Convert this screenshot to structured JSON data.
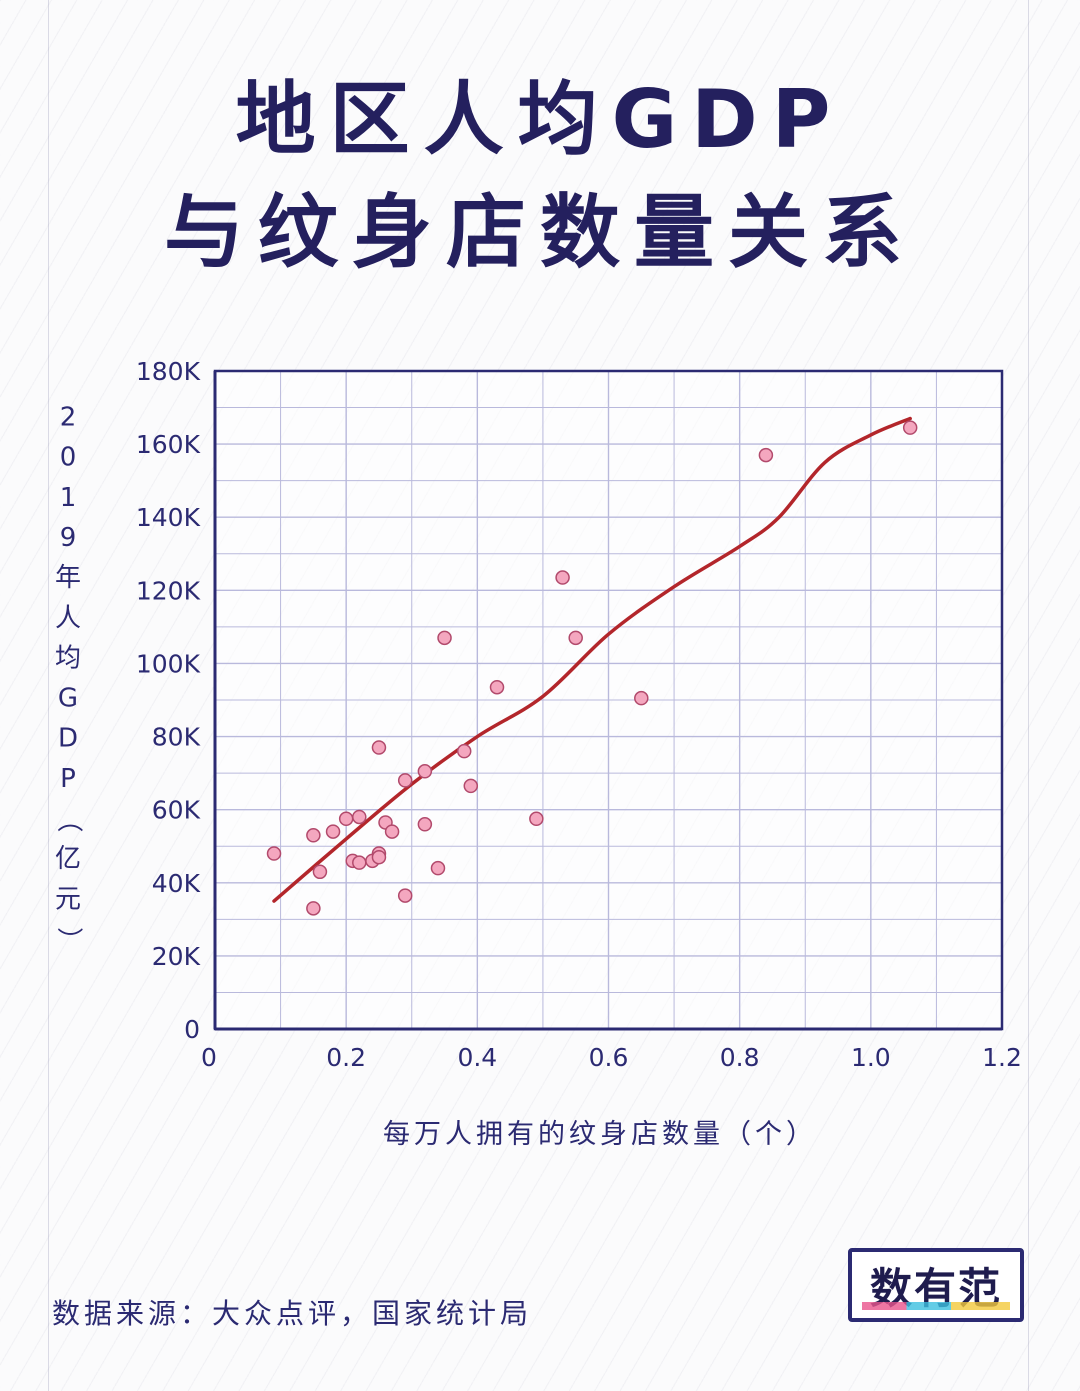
{
  "title": {
    "line1": "地区人均GDP",
    "line2": "与纹身店数量关系"
  },
  "chart_data": {
    "type": "scatter",
    "xlabel": "每万人拥有的纹身店数量（个）",
    "ylabel": "2019年人均GDP（亿元）",
    "xlim": [
      0,
      1.2
    ],
    "ylim": [
      0,
      180000
    ],
    "x_ticks": [
      "0",
      "0.2",
      "0.4",
      "0.6",
      "0.8",
      "1.0",
      "1.2"
    ],
    "y_ticks": [
      "0",
      "20K",
      "40K",
      "60K",
      "80K",
      "100K",
      "120K",
      "140K",
      "160K",
      "180K"
    ],
    "grid": true,
    "points": [
      {
        "x": 0.09,
        "y": 48000
      },
      {
        "x": 0.15,
        "y": 53000
      },
      {
        "x": 0.15,
        "y": 33000
      },
      {
        "x": 0.16,
        "y": 43000
      },
      {
        "x": 0.18,
        "y": 54000
      },
      {
        "x": 0.2,
        "y": 57500
      },
      {
        "x": 0.21,
        "y": 46000
      },
      {
        "x": 0.22,
        "y": 45500
      },
      {
        "x": 0.22,
        "y": 58000
      },
      {
        "x": 0.24,
        "y": 46000
      },
      {
        "x": 0.25,
        "y": 48000
      },
      {
        "x": 0.25,
        "y": 47000
      },
      {
        "x": 0.25,
        "y": 77000
      },
      {
        "x": 0.26,
        "y": 56500
      },
      {
        "x": 0.27,
        "y": 54000
      },
      {
        "x": 0.29,
        "y": 68000
      },
      {
        "x": 0.29,
        "y": 36500
      },
      {
        "x": 0.32,
        "y": 70500
      },
      {
        "x": 0.32,
        "y": 56000
      },
      {
        "x": 0.34,
        "y": 44000
      },
      {
        "x": 0.35,
        "y": 107000
      },
      {
        "x": 0.38,
        "y": 76000
      },
      {
        "x": 0.39,
        "y": 66500
      },
      {
        "x": 0.43,
        "y": 93500
      },
      {
        "x": 0.49,
        "y": 57500
      },
      {
        "x": 0.53,
        "y": 123500
      },
      {
        "x": 0.55,
        "y": 107000
      },
      {
        "x": 0.65,
        "y": 90500
      },
      {
        "x": 0.84,
        "y": 157000
      },
      {
        "x": 1.06,
        "y": 164500
      }
    ],
    "trend": [
      {
        "x": 0.09,
        "y": 35000
      },
      {
        "x": 0.2,
        "y": 52000
      },
      {
        "x": 0.3,
        "y": 67000
      },
      {
        "x": 0.4,
        "y": 80000
      },
      {
        "x": 0.5,
        "y": 91000
      },
      {
        "x": 0.6,
        "y": 108000
      },
      {
        "x": 0.7,
        "y": 121000
      },
      {
        "x": 0.8,
        "y": 132000
      },
      {
        "x": 0.86,
        "y": 140000
      },
      {
        "x": 0.93,
        "y": 155000
      },
      {
        "x": 1.0,
        "y": 162500
      },
      {
        "x": 1.06,
        "y": 167000
      }
    ],
    "point_color": "#f4a7bf",
    "point_stroke": "#b24a6c",
    "trend_color": "#b3262b",
    "grid_color": "#b9b9dc",
    "axis_color": "#2b2a72"
  },
  "source": "数据来源：大众点评，国家统计局",
  "logo": "数有范"
}
